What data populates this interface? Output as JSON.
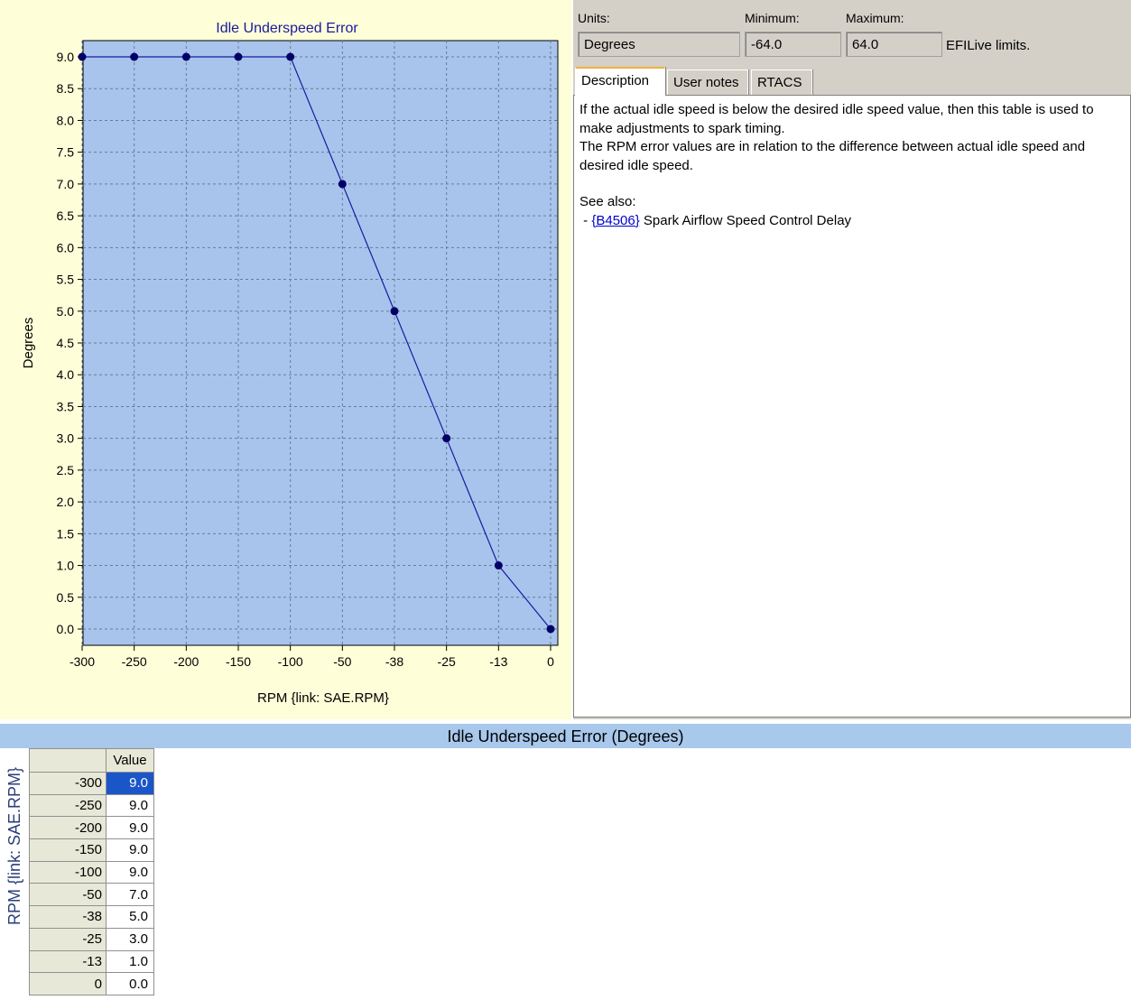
{
  "chart_data": {
    "type": "line",
    "title": "Idle Underspeed Error",
    "xlabel": "RPM {link: SAE.RPM}",
    "ylabel": "Degrees",
    "categories": [
      "-300",
      "-250",
      "-200",
      "-150",
      "-100",
      "-50",
      "-38",
      "-25",
      "-13",
      "0"
    ],
    "series": [
      {
        "values": [
          9.0,
          9.0,
          9.0,
          9.0,
          9.0,
          7.0,
          5.0,
          3.0,
          1.0,
          0.0
        ]
      }
    ],
    "ylim": [
      0,
      9.0
    ],
    "yticks": [
      "9.0",
      "8.5",
      "8.0",
      "7.5",
      "7.0",
      "6.5",
      "6.0",
      "5.5",
      "5.0",
      "4.5",
      "4.0",
      "3.5",
      "3.0",
      "2.5",
      "2.0",
      "1.5",
      "1.0",
      "0.5",
      "0.0"
    ],
    "grid": true,
    "colors": {
      "plot_bg": "#a8c4ec",
      "line": "#1a1aa0",
      "marker": "#000066",
      "grid": "#6a7a9a"
    }
  },
  "info": {
    "units_label": "Units:",
    "min_label": "Minimum:",
    "max_label": "Maximum:",
    "units_value": "Degrees",
    "min_value": "-64.0",
    "max_value": "64.0",
    "limits_text": "EFILive limits.",
    "tabs": [
      {
        "label": "Description"
      },
      {
        "label": "User notes"
      },
      {
        "label": "RTACS"
      }
    ],
    "description": {
      "line1": "If the actual idle speed is below the desired idle speed value, then this table is used to make adjustments to spark timing.",
      "line2": "The RPM error values are in relation to the difference between actual idle speed and desired idle speed.",
      "see_also": "See also:",
      "link_prefix": " - ",
      "link_text": "{B4506}",
      "link_desc": " Spark Airflow Speed Control Delay"
    }
  },
  "table": {
    "title": "Idle Underspeed Error (Degrees)",
    "axis_label": "RPM {link: SAE.RPM}",
    "column_header": "Value",
    "rows": [
      {
        "rpm": "-300",
        "value": "9.0"
      },
      {
        "rpm": "-250",
        "value": "9.0"
      },
      {
        "rpm": "-200",
        "value": "9.0"
      },
      {
        "rpm": "-150",
        "value": "9.0"
      },
      {
        "rpm": "-100",
        "value": "9.0"
      },
      {
        "rpm": "-50",
        "value": "7.0"
      },
      {
        "rpm": "-38",
        "value": "5.0"
      },
      {
        "rpm": "-25",
        "value": "3.0"
      },
      {
        "rpm": "-13",
        "value": "1.0"
      },
      {
        "rpm": "0",
        "value": "0.0"
      }
    ]
  }
}
